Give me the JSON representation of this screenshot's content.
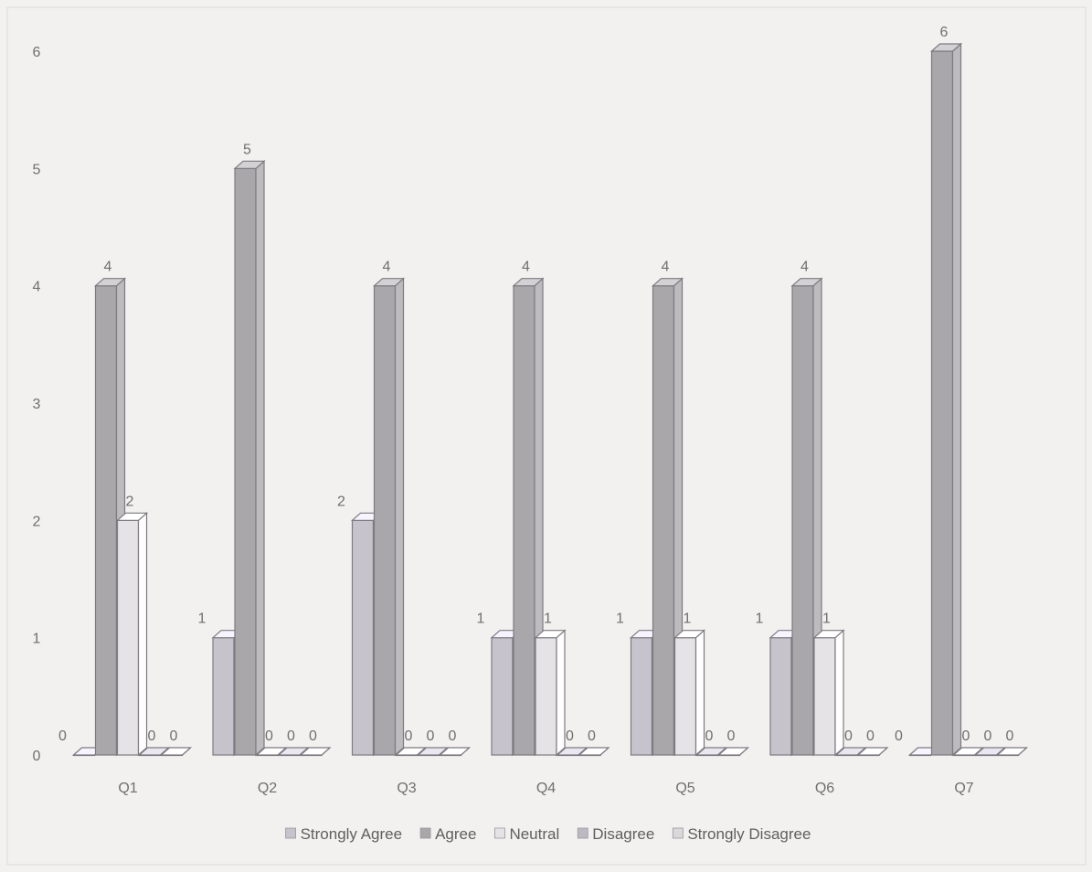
{
  "chart_data": {
    "type": "bar",
    "style": "3d-clustered-column",
    "categories": [
      "Q1",
      "Q2",
      "Q3",
      "Q4",
      "Q5",
      "Q6",
      "Q7"
    ],
    "series": [
      {
        "name": "Strongly Agree",
        "values": [
          0,
          1,
          2,
          1,
          1,
          1,
          0
        ],
        "color": "#c6c3cc"
      },
      {
        "name": "Agree",
        "values": [
          4,
          5,
          4,
          4,
          4,
          4,
          6
        ],
        "color": "#a9a7a9"
      },
      {
        "name": "Neutral",
        "values": [
          2,
          0,
          0,
          1,
          1,
          1,
          0
        ],
        "color": "#e5e3e6"
      },
      {
        "name": "Disagree",
        "values": [
          0,
          0,
          0,
          0,
          0,
          0,
          0
        ],
        "color": "#bcb9c0"
      },
      {
        "name": "Strongly Disagree",
        "values": [
          0,
          0,
          0,
          0,
          0,
          0,
          0
        ],
        "color": "#dad8db"
      }
    ],
    "y_ticks": [
      "0",
      "1",
      "2",
      "3",
      "4",
      "5",
      "6"
    ],
    "ylim": [
      0,
      6
    ],
    "grid": false,
    "data_labels": true,
    "legend_position": "bottom"
  }
}
